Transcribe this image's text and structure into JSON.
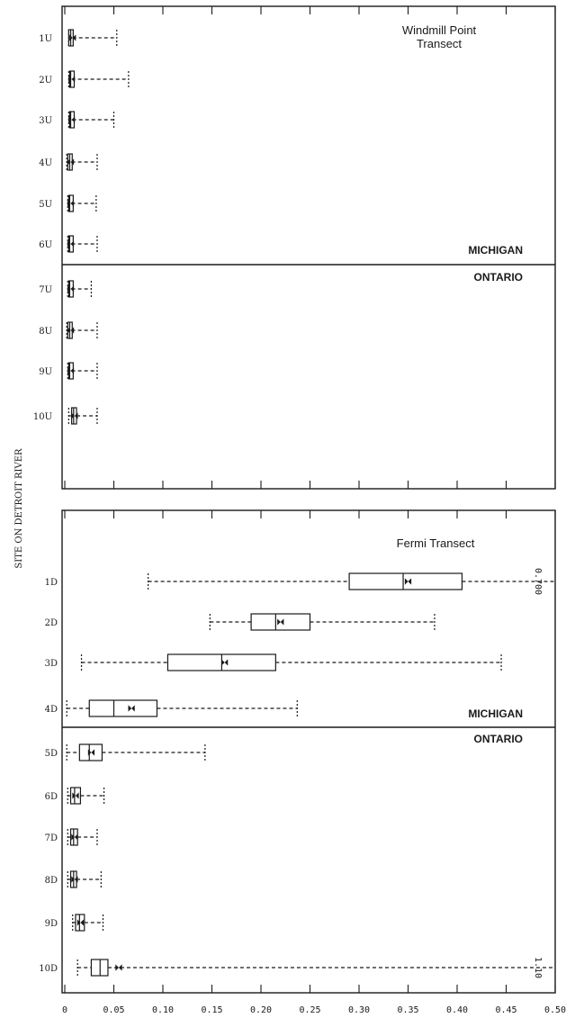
{
  "chart_data": [
    {
      "type": "box",
      "panel": "upper",
      "title": "Windmill Point Transect",
      "title_lines": [
        "Windmill Point",
        "Transect"
      ],
      "region_labels": {
        "above": "MICHIGAN",
        "below": "ONTARIO"
      },
      "ylabel": "SITE ON DETROIT RIVER",
      "xlim": [
        0,
        0.5
      ],
      "xticks": [
        0,
        0.05,
        0.1,
        0.15,
        0.2,
        0.25,
        0.3,
        0.35,
        0.4,
        0.45,
        0.5
      ],
      "grid": false,
      "categories": [
        "1U",
        "2U",
        "3U",
        "4U",
        "5U",
        "6U",
        "7U",
        "8U",
        "9U",
        "10U"
      ],
      "boxes": [
        {
          "site": "1U",
          "min": 0.004,
          "q1": 0.004,
          "median": 0.006,
          "q3": 0.008,
          "max": 0.053,
          "mean": 0.008
        },
        {
          "site": "2U",
          "min": 0.004,
          "q1": 0.005,
          "median": 0.006,
          "q3": 0.007,
          "max": 0.065,
          "mean": 0.007
        },
        {
          "site": "3U",
          "min": 0.004,
          "q1": 0.005,
          "median": 0.006,
          "q3": 0.008,
          "max": 0.05,
          "mean": 0.007
        },
        {
          "site": "4U",
          "min": 0.002,
          "q1": 0.003,
          "median": 0.005,
          "q3": 0.007,
          "max": 0.033,
          "mean": 0.006
        },
        {
          "site": "5U",
          "min": 0.003,
          "q1": 0.004,
          "median": 0.005,
          "q3": 0.007,
          "max": 0.032,
          "mean": 0.006
        },
        {
          "site": "6U",
          "min": 0.003,
          "q1": 0.004,
          "median": 0.005,
          "q3": 0.007,
          "max": 0.033,
          "mean": 0.006
        },
        {
          "site": "7U",
          "min": 0.003,
          "q1": 0.004,
          "median": 0.005,
          "q3": 0.007,
          "max": 0.027,
          "mean": 0.006
        },
        {
          "site": "8U",
          "min": 0.002,
          "q1": 0.003,
          "median": 0.005,
          "q3": 0.007,
          "max": 0.033,
          "mean": 0.006
        },
        {
          "site": "9U",
          "min": 0.003,
          "q1": 0.004,
          "median": 0.005,
          "q3": 0.007,
          "max": 0.033,
          "mean": 0.006
        },
        {
          "site": "10U",
          "min": 0.004,
          "q1": 0.007,
          "median": 0.009,
          "q3": 0.012,
          "max": 0.033,
          "mean": 0.01
        }
      ]
    },
    {
      "type": "box",
      "panel": "lower",
      "title": "Fermi Transect",
      "region_labels": {
        "above": "MICHIGAN",
        "below": "ONTARIO"
      },
      "ylabel": "SITE ON DETROIT RIVER",
      "xlim": [
        0,
        0.5
      ],
      "xticks": [
        0,
        0.05,
        0.1,
        0.15,
        0.2,
        0.25,
        0.3,
        0.35,
        0.4,
        0.45,
        0.5
      ],
      "xtick_labels": [
        "0",
        "0.05",
        "0.10",
        "0.15",
        "0.20",
        "0.25",
        "0.30",
        "0.35",
        "0.40",
        "0.45",
        "0.50"
      ],
      "grid": false,
      "categories": [
        "1D",
        "2D",
        "3D",
        "4D",
        "5D",
        "6D",
        "7D",
        "8D",
        "9D",
        "10D"
      ],
      "boxes": [
        {
          "site": "1D",
          "min": 0.085,
          "q1": 0.29,
          "median": 0.345,
          "q3": 0.405,
          "max": 0.7,
          "mean": 0.35,
          "max_label": "0.700"
        },
        {
          "site": "2D",
          "min": 0.148,
          "q1": 0.19,
          "median": 0.215,
          "q3": 0.25,
          "max": 0.377,
          "mean": 0.22
        },
        {
          "site": "3D",
          "min": 0.017,
          "q1": 0.105,
          "median": 0.16,
          "q3": 0.215,
          "max": 0.445,
          "mean": 0.163
        },
        {
          "site": "4D",
          "min": 0.002,
          "q1": 0.025,
          "median": 0.05,
          "q3": 0.094,
          "max": 0.237,
          "mean": 0.068
        },
        {
          "site": "5D",
          "min": 0.002,
          "q1": 0.015,
          "median": 0.025,
          "q3": 0.038,
          "max": 0.143,
          "mean": 0.027
        },
        {
          "site": "6D",
          "min": 0.003,
          "q1": 0.006,
          "median": 0.01,
          "q3": 0.016,
          "max": 0.04,
          "mean": 0.011
        },
        {
          "site": "7D",
          "min": 0.003,
          "q1": 0.006,
          "median": 0.009,
          "q3": 0.013,
          "max": 0.033,
          "mean": 0.01
        },
        {
          "site": "8D",
          "min": 0.003,
          "q1": 0.006,
          "median": 0.009,
          "q3": 0.012,
          "max": 0.037,
          "mean": 0.01
        },
        {
          "site": "9D",
          "min": 0.008,
          "q1": 0.011,
          "median": 0.015,
          "q3": 0.02,
          "max": 0.039,
          "mean": 0.016
        },
        {
          "site": "10D",
          "min": 0.013,
          "q1": 0.027,
          "median": 0.036,
          "q3": 0.044,
          "max": 1.1,
          "mean": 0.055,
          "max_label": "1.10"
        }
      ]
    }
  ]
}
